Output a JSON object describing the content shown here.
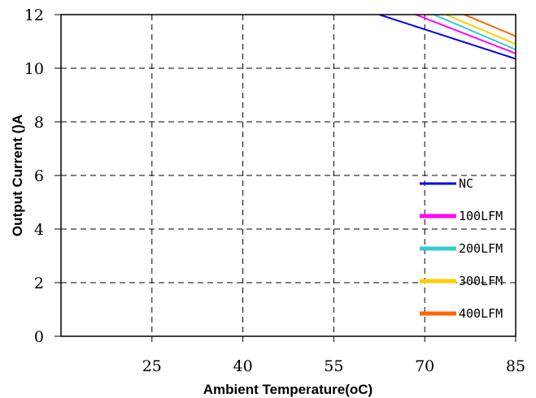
{
  "chart_data": {
    "type": "line",
    "xlabel": "Ambient Temperature(oC)",
    "ylabel": "Output Current ()A",
    "xlim": [
      10,
      85
    ],
    "ylim": [
      0,
      12
    ],
    "x_ticks": [
      25,
      40,
      55,
      70,
      85
    ],
    "y_ticks": [
      0,
      2,
      4,
      6,
      8,
      10,
      12
    ],
    "grid": true,
    "legend_position": "bottom-right",
    "series": [
      {
        "name": "NC",
        "color": "#0000ee",
        "x": [
          62.5,
          85
        ],
        "y": [
          12,
          10.35
        ]
      },
      {
        "name": "100LFM",
        "color": "#ff00ff",
        "x": [
          68.5,
          85
        ],
        "y": [
          12,
          10.55
        ]
      },
      {
        "name": "200LFM",
        "color": "#33cccc",
        "x": [
          71.5,
          85
        ],
        "y": [
          12,
          10.7
        ]
      },
      {
        "name": "300LFM",
        "color": "#ffcc00",
        "x": [
          73.5,
          85
        ],
        "y": [
          12,
          10.9
        ]
      },
      {
        "name": "400LFM",
        "color": "#ff6600",
        "x": [
          76.5,
          85
        ],
        "y": [
          12,
          11.2
        ]
      }
    ]
  }
}
